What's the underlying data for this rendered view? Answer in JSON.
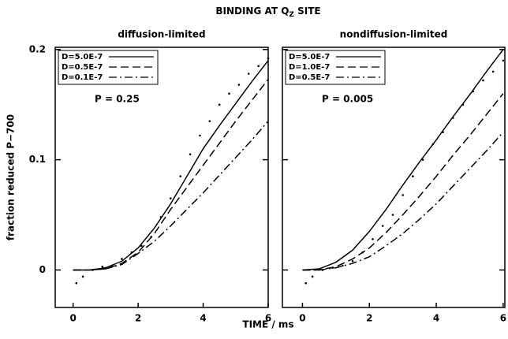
{
  "title": "BINDING AT Q",
  "title_subscript": "Z",
  "title_end": "SITE",
  "ylabel": "fraction reduced P−700",
  "xlabel": "TIME / ms",
  "chart_data": [
    {
      "type": "line",
      "subtitle": "diffusion-limited",
      "annotation": "P = 0.25",
      "xlim": [
        -0.55,
        6
      ],
      "ylim": [
        -0.034,
        0.202
      ],
      "xticks": [
        0,
        2,
        4,
        6
      ],
      "yticks": [
        0,
        0.1,
        0.2
      ],
      "show_ytick_labels": true,
      "x": [
        0,
        0.5,
        1,
        1.5,
        2,
        2.5,
        3,
        3.5,
        4,
        4.5,
        5,
        5.5,
        6
      ],
      "series": [
        {
          "name": "D=5.0E-7",
          "color": "#000000",
          "style": "solid",
          "values": [
            0,
            0,
            0.002,
            0.008,
            0.02,
            0.038,
            0.06,
            0.085,
            0.11,
            0.131,
            0.151,
            0.171,
            0.19
          ]
        },
        {
          "name": "D=0.5E-7",
          "color": "#000000",
          "style": "dash",
          "values": [
            0,
            0,
            0.001,
            0.006,
            0.016,
            0.033,
            0.055,
            0.075,
            0.095,
            0.115,
            0.135,
            0.154,
            0.173
          ]
        },
        {
          "name": "D=0.1E-7",
          "color": "#000000",
          "style": "dashdot",
          "values": [
            0,
            0,
            0.001,
            0.005,
            0.015,
            0.026,
            0.04,
            0.055,
            0.07,
            0.086,
            0.102,
            0.118,
            0.135
          ]
        }
      ],
      "points": {
        "color": "#000000",
        "x": [
          0.1,
          0.3,
          0.6,
          0.9,
          1.2,
          1.5,
          1.8,
          2.1,
          2.4,
          2.7,
          3.0,
          3.3,
          3.6,
          3.9,
          4.2,
          4.5,
          4.8,
          5.1,
          5.4,
          5.7,
          6.0
        ],
        "y": [
          -0.012,
          -0.006,
          0.0,
          0.003,
          0.004,
          0.01,
          0.016,
          0.022,
          0.03,
          0.048,
          0.065,
          0.085,
          0.105,
          0.122,
          0.135,
          0.15,
          0.16,
          0.168,
          0.178,
          0.185,
          0.192
        ]
      }
    },
    {
      "type": "line",
      "subtitle": "nondiffusion-limited",
      "annotation": "P = 0.005",
      "xlim": [
        -0.6,
        6.05
      ],
      "ylim": [
        -0.034,
        0.202
      ],
      "xticks": [
        0,
        2,
        4,
        6
      ],
      "yticks": [
        0,
        0.1,
        0.2
      ],
      "show_ytick_labels": false,
      "x": [
        0,
        0.5,
        1,
        1.5,
        2,
        2.5,
        3,
        3.5,
        4,
        4.5,
        5,
        5.5,
        6
      ],
      "series": [
        {
          "name": "D=5.0E-7",
          "color": "#000000",
          "style": "solid",
          "values": [
            0,
            0.001,
            0.007,
            0.018,
            0.035,
            0.055,
            0.077,
            0.098,
            0.118,
            0.139,
            0.159,
            0.18,
            0.2
          ]
        },
        {
          "name": "D=1.0E-7",
          "color": "#000000",
          "style": "dash",
          "values": [
            0,
            0,
            0.003,
            0.01,
            0.02,
            0.034,
            0.05,
            0.067,
            0.085,
            0.104,
            0.122,
            0.141,
            0.16
          ]
        },
        {
          "name": "D=0.5E-7",
          "color": "#000000",
          "style": "dashdot",
          "values": [
            0,
            0,
            0.002,
            0.006,
            0.012,
            0.022,
            0.033,
            0.046,
            0.06,
            0.076,
            0.092,
            0.108,
            0.125
          ]
        }
      ],
      "points": {
        "color": "#000000",
        "x": [
          0.1,
          0.3,
          0.6,
          0.9,
          1.2,
          1.5,
          1.8,
          2.1,
          2.4,
          2.7,
          3.0,
          3.3,
          3.6,
          3.9,
          4.2,
          4.5,
          4.8,
          5.1,
          5.4,
          5.7,
          6.0
        ],
        "y": [
          -0.012,
          -0.006,
          0.0,
          0.002,
          0.004,
          0.008,
          0.016,
          0.028,
          0.04,
          0.05,
          0.068,
          0.085,
          0.1,
          0.114,
          0.125,
          0.138,
          0.15,
          0.162,
          0.172,
          0.18,
          0.19
        ]
      }
    }
  ]
}
